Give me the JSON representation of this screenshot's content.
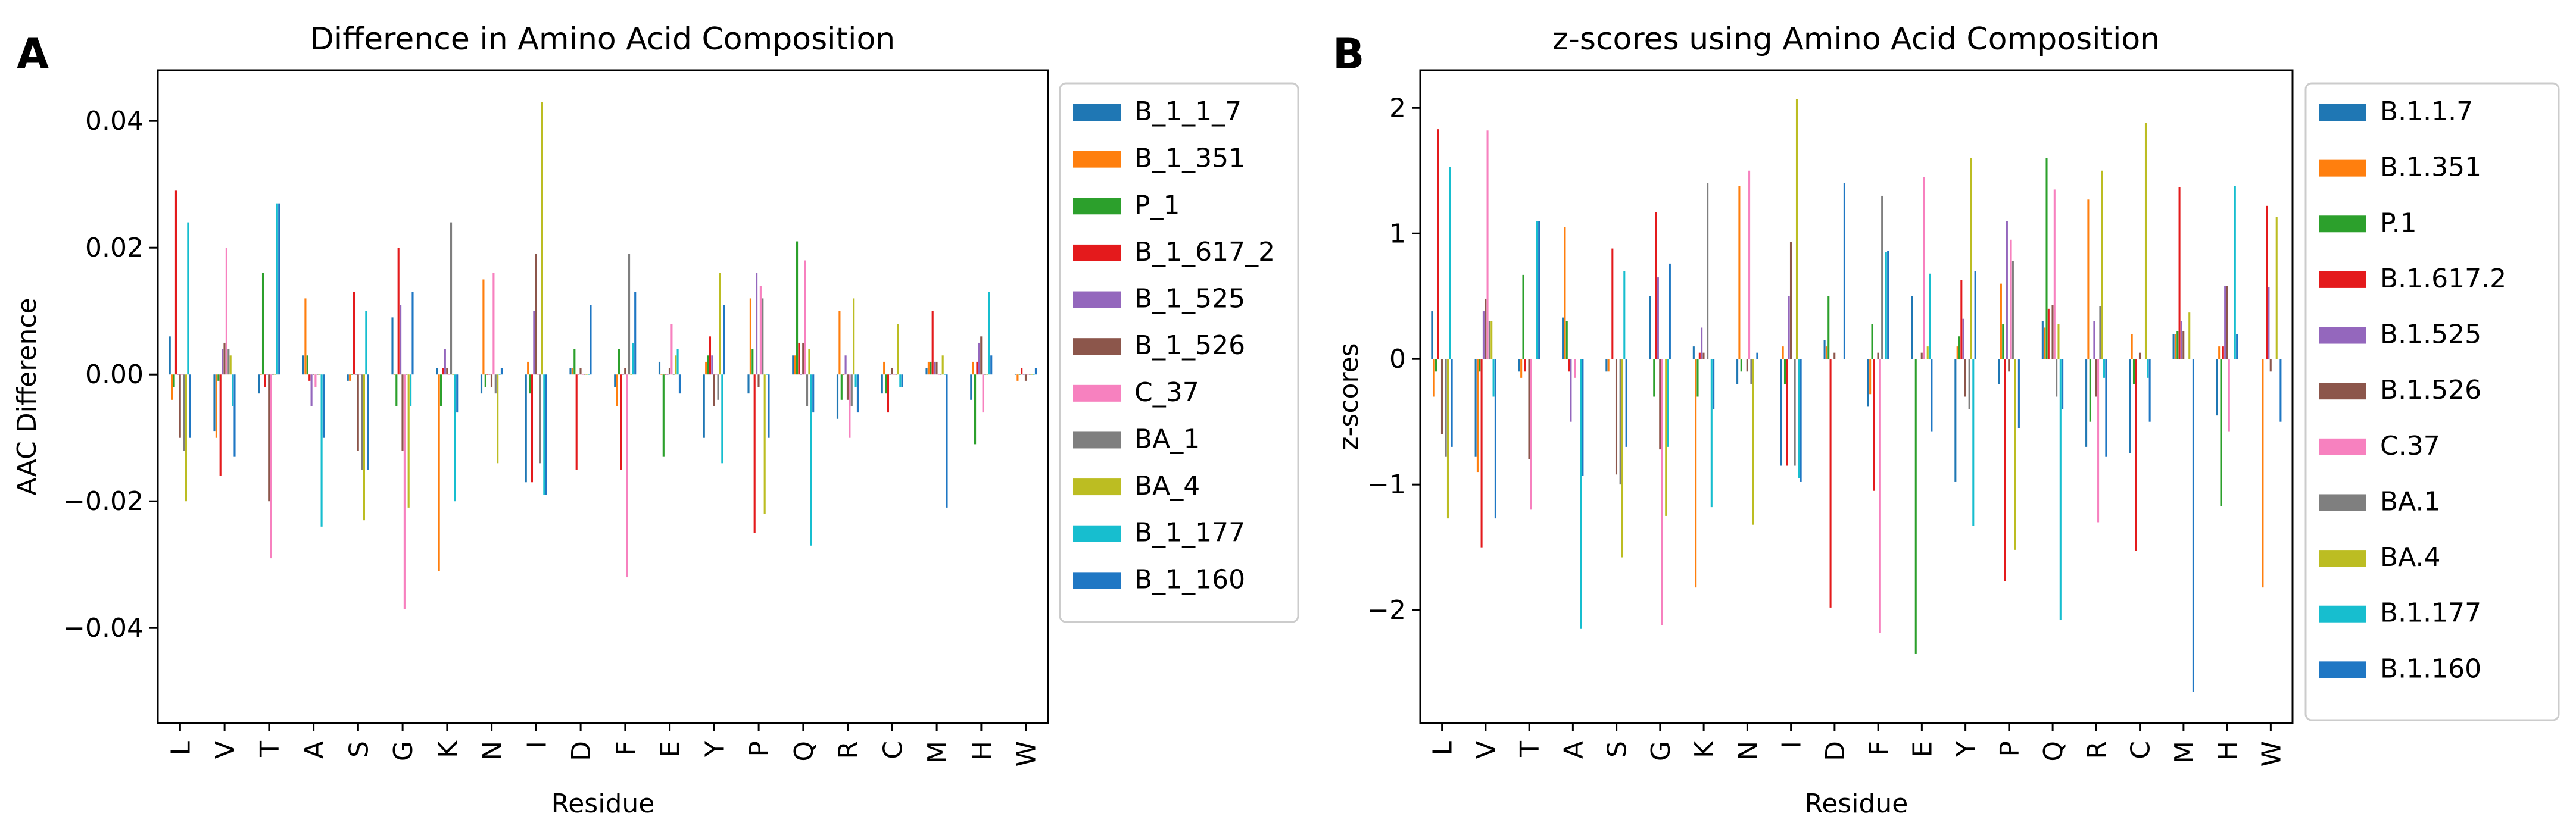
{
  "figure": {
    "panels": [
      {
        "letter": "A"
      },
      {
        "letter": "B"
      }
    ]
  },
  "chart_data": [
    {
      "type": "bar",
      "title": "Difference in Amino Acid Composition",
      "xlabel": "Residue",
      "ylabel": "AAC Difference",
      "ylim": [
        -0.055,
        0.048
      ],
      "yticks": [
        -0.04,
        -0.02,
        0.0,
        0.02,
        0.04
      ],
      "ytick_labels": [
        "−0.04",
        "−0.02",
        "0.00",
        "0.02",
        "0.04"
      ],
      "legend_position": "outside-right",
      "categories": [
        "L",
        "V",
        "T",
        "A",
        "S",
        "G",
        "K",
        "N",
        "I",
        "D",
        "F",
        "E",
        "Y",
        "P",
        "Q",
        "R",
        "C",
        "M",
        "H",
        "W"
      ],
      "series": [
        {
          "name": "B_1_1_7",
          "color": "#1f77b4",
          "values": [
            0.006,
            -0.009,
            -0.003,
            0.003,
            -0.001,
            0.009,
            0.001,
            -0.003,
            -0.017,
            0.001,
            -0.002,
            0.002,
            -0.01,
            -0.003,
            0.003,
            -0.007,
            -0.003,
            0.001,
            -0.004,
            0.0
          ]
        },
        {
          "name": "B_1_351",
          "color": "#ff7f0e",
          "values": [
            -0.004,
            -0.01,
            0.0,
            0.012,
            -0.001,
            0.0,
            -0.031,
            0.015,
            0.002,
            0.001,
            -0.005,
            0.0,
            0.002,
            0.012,
            0.003,
            0.01,
            0.002,
            0.002,
            0.002,
            -0.001
          ]
        },
        {
          "name": "P_1",
          "color": "#2ca02c",
          "values": [
            -0.002,
            -0.001,
            0.016,
            0.003,
            0.0,
            -0.005,
            -0.005,
            -0.002,
            -0.003,
            0.004,
            0.004,
            -0.013,
            0.003,
            0.004,
            0.021,
            -0.004,
            -0.003,
            0.002,
            -0.011,
            0.0
          ]
        },
        {
          "name": "B_1_617_2",
          "color": "#e41a1c",
          "values": [
            0.029,
            -0.016,
            -0.002,
            -0.001,
            0.013,
            0.02,
            0.001,
            0.0,
            -0.017,
            -0.015,
            -0.015,
            0.0,
            0.006,
            -0.025,
            0.005,
            0.0,
            -0.006,
            0.01,
            0.002,
            0.001
          ]
        },
        {
          "name": "B_1_525",
          "color": "#9467bd",
          "values": [
            0.0,
            0.004,
            0.0,
            -0.005,
            0.0,
            0.011,
            0.004,
            0.0,
            0.01,
            0.0,
            0.0,
            0.0,
            0.003,
            0.016,
            0.0,
            0.003,
            0.0,
            0.002,
            0.005,
            0.0
          ]
        },
        {
          "name": "B_1_526",
          "color": "#8c564b",
          "values": [
            -0.01,
            0.005,
            -0.02,
            0.0,
            -0.012,
            -0.012,
            0.001,
            -0.002,
            0.019,
            0.001,
            0.001,
            0.001,
            -0.005,
            -0.002,
            0.005,
            -0.004,
            0.001,
            0.002,
            0.006,
            -0.001
          ]
        },
        {
          "name": "C_37",
          "color": "#f781bf",
          "values": [
            0.0,
            0.02,
            -0.029,
            -0.002,
            0.0,
            -0.037,
            0.0,
            0.016,
            0.0,
            0.0,
            -0.032,
            0.008,
            0.0,
            0.014,
            0.018,
            -0.01,
            0.0,
            0.0,
            -0.006,
            0.0
          ]
        },
        {
          "name": "BA_1",
          "color": "#7f7f7f",
          "values": [
            -0.012,
            0.004,
            0.0,
            0.0,
            -0.015,
            0.0,
            0.024,
            -0.003,
            -0.014,
            0.0,
            0.019,
            0.0,
            -0.004,
            0.012,
            -0.005,
            -0.005,
            0.0,
            0.0,
            0.0,
            0.0
          ]
        },
        {
          "name": "BA_4",
          "color": "#bcbd22",
          "values": [
            -0.02,
            0.003,
            0.0,
            0.0,
            -0.023,
            -0.021,
            0.0,
            -0.014,
            0.043,
            0.0,
            0.0,
            0.003,
            0.016,
            -0.022,
            0.004,
            0.012,
            0.008,
            0.003,
            0.0,
            0.0
          ]
        },
        {
          "name": "B_1_177",
          "color": "#17becf",
          "values": [
            0.024,
            -0.005,
            0.027,
            -0.024,
            0.01,
            -0.005,
            -0.02,
            0.0,
            -0.019,
            0.0,
            0.005,
            0.004,
            -0.014,
            0.0,
            -0.027,
            -0.002,
            -0.002,
            0.0,
            0.013,
            0.0
          ]
        },
        {
          "name": "B_1_160",
          "color": "#1f77c4",
          "values": [
            -0.01,
            -0.013,
            0.027,
            -0.01,
            -0.015,
            0.013,
            -0.006,
            0.001,
            -0.019,
            0.011,
            0.013,
            -0.003,
            0.011,
            -0.01,
            -0.006,
            -0.006,
            -0.002,
            -0.021,
            0.003,
            0.001
          ]
        }
      ]
    },
    {
      "type": "bar",
      "title": "z-scores using Amino Acid Composition",
      "xlabel": "Residue",
      "ylabel": "z-scores",
      "ylim": [
        -2.9,
        2.3
      ],
      "yticks": [
        -2,
        -1,
        0,
        1,
        2
      ],
      "ytick_labels": [
        "−2",
        "−1",
        "0",
        "1",
        "2"
      ],
      "legend_position": "outside-right",
      "categories": [
        "L",
        "V",
        "T",
        "A",
        "S",
        "G",
        "K",
        "N",
        "I",
        "D",
        "F",
        "E",
        "Y",
        "P",
        "Q",
        "R",
        "C",
        "M",
        "H",
        "W"
      ],
      "series": [
        {
          "name": "B.1.1.7",
          "color": "#1f77b4",
          "values": [
            0.38,
            -0.78,
            -0.1,
            0.33,
            -0.1,
            0.5,
            0.1,
            -0.2,
            -0.85,
            0.15,
            -0.38,
            0.5,
            -0.98,
            -0.2,
            0.3,
            -0.7,
            -0.75,
            0.2,
            -0.45,
            0.0
          ]
        },
        {
          "name": "B.1.351",
          "color": "#ff7f0e",
          "values": [
            -0.3,
            -0.9,
            -0.15,
            1.05,
            -0.1,
            0.0,
            -1.82,
            1.38,
            0.1,
            0.1,
            -0.28,
            0.0,
            0.1,
            0.6,
            0.25,
            1.27,
            0.2,
            0.2,
            0.1,
            -1.82
          ]
        },
        {
          "name": "P.1",
          "color": "#2ca02c",
          "values": [
            -0.1,
            -0.1,
            0.67,
            0.3,
            0.0,
            -0.3,
            -0.3,
            -0.1,
            -0.2,
            0.5,
            0.28,
            -2.35,
            0.18,
            0.28,
            1.6,
            -0.5,
            -0.2,
            0.22,
            -1.17,
            0.0
          ]
        },
        {
          "name": "B.1.617.2",
          "color": "#e41a1c",
          "values": [
            1.83,
            -1.5,
            -0.1,
            -0.1,
            0.88,
            1.17,
            0.05,
            0.0,
            -0.85,
            -1.98,
            -1.05,
            0.0,
            0.63,
            -1.77,
            0.4,
            0.0,
            -1.53,
            1.37,
            0.1,
            1.22
          ]
        },
        {
          "name": "B.1.525",
          "color": "#9467bd",
          "values": [
            0.0,
            0.38,
            0.0,
            -0.5,
            0.0,
            0.65,
            0.25,
            0.0,
            0.5,
            0.0,
            0.0,
            0.0,
            0.32,
            1.1,
            0.0,
            0.3,
            0.0,
            0.3,
            0.58,
            0.57
          ]
        },
        {
          "name": "B.1.526",
          "color": "#8c564b",
          "values": [
            -0.6,
            0.48,
            -0.8,
            0.0,
            -0.92,
            -0.72,
            0.05,
            -0.1,
            0.93,
            0.05,
            0.05,
            0.05,
            -0.3,
            -0.1,
            0.43,
            -0.3,
            0.05,
            0.22,
            0.58,
            -0.1
          ]
        },
        {
          "name": "C.37",
          "color": "#f781bf",
          "values": [
            0.0,
            1.82,
            -1.2,
            -0.15,
            0.0,
            -2.12,
            0.0,
            1.5,
            0.0,
            0.0,
            -2.18,
            1.45,
            0.0,
            0.95,
            1.35,
            -1.3,
            0.0,
            0.0,
            -0.58,
            0.0
          ]
        },
        {
          "name": "BA.1",
          "color": "#7f7f7f",
          "values": [
            -0.78,
            0.3,
            0.0,
            0.0,
            -1.0,
            0.0,
            1.4,
            -0.2,
            -0.85,
            0.0,
            1.3,
            0.0,
            -0.4,
            0.78,
            -0.3,
            0.42,
            0.0,
            0.0,
            0.0,
            0.0
          ]
        },
        {
          "name": "BA.4",
          "color": "#bcbd22",
          "values": [
            -1.27,
            0.3,
            0.0,
            0.0,
            -1.58,
            -1.25,
            0.0,
            -1.32,
            2.07,
            0.0,
            0.0,
            0.1,
            1.6,
            -1.52,
            0.28,
            1.5,
            1.88,
            0.37,
            0.0,
            1.13
          ]
        },
        {
          "name": "B.1.177",
          "color": "#17becf",
          "values": [
            1.53,
            -0.3,
            1.1,
            -2.15,
            0.7,
            -0.7,
            -1.18,
            0.0,
            -0.95,
            0.0,
            0.85,
            0.68,
            -1.33,
            0.0,
            -2.08,
            -0.15,
            -0.15,
            0.0,
            1.38,
            0.0
          ]
        },
        {
          "name": "B.1.160",
          "color": "#1f77c4",
          "values": [
            -0.7,
            -1.27,
            1.1,
            -0.93,
            -0.7,
            0.76,
            -0.4,
            0.05,
            -0.98,
            1.4,
            0.86,
            -0.58,
            0.7,
            -0.55,
            -0.4,
            -0.78,
            -0.5,
            -2.65,
            0.2,
            -0.5
          ]
        }
      ]
    }
  ]
}
